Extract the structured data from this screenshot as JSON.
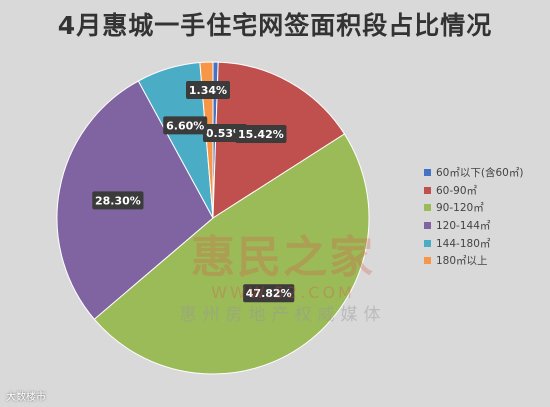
{
  "chart_data": {
    "type": "pie",
    "title": "4月惠城一手住宅网签面积段占比情况",
    "legend_position": "right",
    "slices": [
      {
        "label": "60㎡以下(含60㎡)",
        "value": 0.53,
        "value_label": "0.53%",
        "color": "#4472c4"
      },
      {
        "label": "60-90㎡",
        "value": 15.42,
        "value_label": "15.42%",
        "color": "#c0504d"
      },
      {
        "label": "90-120㎡",
        "value": 47.82,
        "value_label": "47.82%",
        "color": "#9bbb59"
      },
      {
        "label": "120-144㎡",
        "value": 28.3,
        "value_label": "28.30%",
        "color": "#8064a2"
      },
      {
        "label": "144-180㎡",
        "value": 6.6,
        "value_label": "6.60%",
        "color": "#4bacc6"
      },
      {
        "label": "180㎡以上",
        "value": 1.34,
        "value_label": "1.34%",
        "color": "#f79646"
      }
    ]
  },
  "watermark": {
    "brand": "惠民之家",
    "url": "WWW.52.COM",
    "media": "惠州房地产权威媒体"
  },
  "footer": {
    "source_mark": "大数楼市"
  }
}
